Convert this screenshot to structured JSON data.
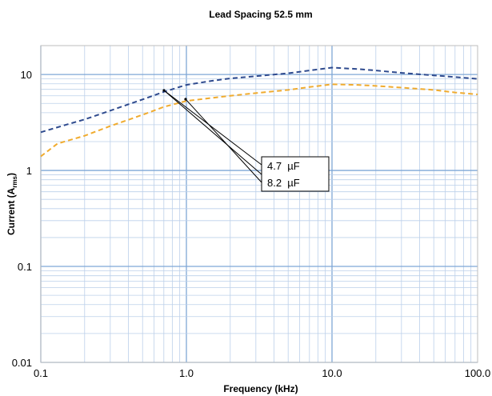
{
  "chart_data": {
    "type": "line",
    "title": "Lead Spacing 52.5 mm",
    "xlabel": "Frequency (kHz)",
    "ylabel": {
      "main": "Current (A",
      "sub": "rms",
      "close": ")"
    },
    "x_scale": "log",
    "y_scale": "log",
    "xlim": [
      0.1,
      100
    ],
    "ylim": [
      0.01,
      20
    ],
    "grid": true,
    "x_ticks": [
      {
        "value": 0.1,
        "label": "0.1"
      },
      {
        "value": 1,
        "label": "1.0"
      },
      {
        "value": 10,
        "label": "10.0"
      },
      {
        "value": 100,
        "label": "100.0"
      }
    ],
    "y_ticks": [
      {
        "value": 0.01,
        "label": "0.01"
      },
      {
        "value": 0.1,
        "label": "0.1"
      },
      {
        "value": 1,
        "label": "1"
      },
      {
        "value": 10,
        "label": "10"
      }
    ],
    "series": [
      {
        "name": "4.7  µF",
        "color": "#2e4a8e",
        "style": "dashed",
        "x": [
          0.1,
          0.15,
          0.2,
          0.3,
          0.5,
          0.7,
          1,
          1.5,
          2,
          3,
          5,
          7,
          10,
          15,
          20,
          30,
          50,
          70,
          100
        ],
        "y": [
          2.5,
          3.0,
          3.4,
          4.2,
          5.5,
          6.6,
          7.8,
          8.6,
          9.1,
          9.6,
          10.3,
          11.0,
          11.8,
          11.4,
          11.0,
          10.4,
          9.8,
          9.4,
          9.0
        ]
      },
      {
        "name": "8.2  µF",
        "color": "#f0ab2e",
        "style": "dashed",
        "x": [
          0.1,
          0.13,
          0.2,
          0.3,
          0.5,
          0.7,
          1,
          1.5,
          2,
          3,
          5,
          7,
          10,
          15,
          20,
          30,
          50,
          70,
          100
        ],
        "y": [
          1.4,
          1.9,
          2.3,
          2.9,
          3.8,
          4.6,
          5.3,
          5.7,
          6.0,
          6.4,
          6.9,
          7.4,
          7.9,
          7.8,
          7.6,
          7.3,
          6.9,
          6.5,
          6.2
        ]
      }
    ],
    "annotations": [
      {
        "text": "4.7  µF"
      },
      {
        "text": "8.2  µF"
      }
    ]
  }
}
